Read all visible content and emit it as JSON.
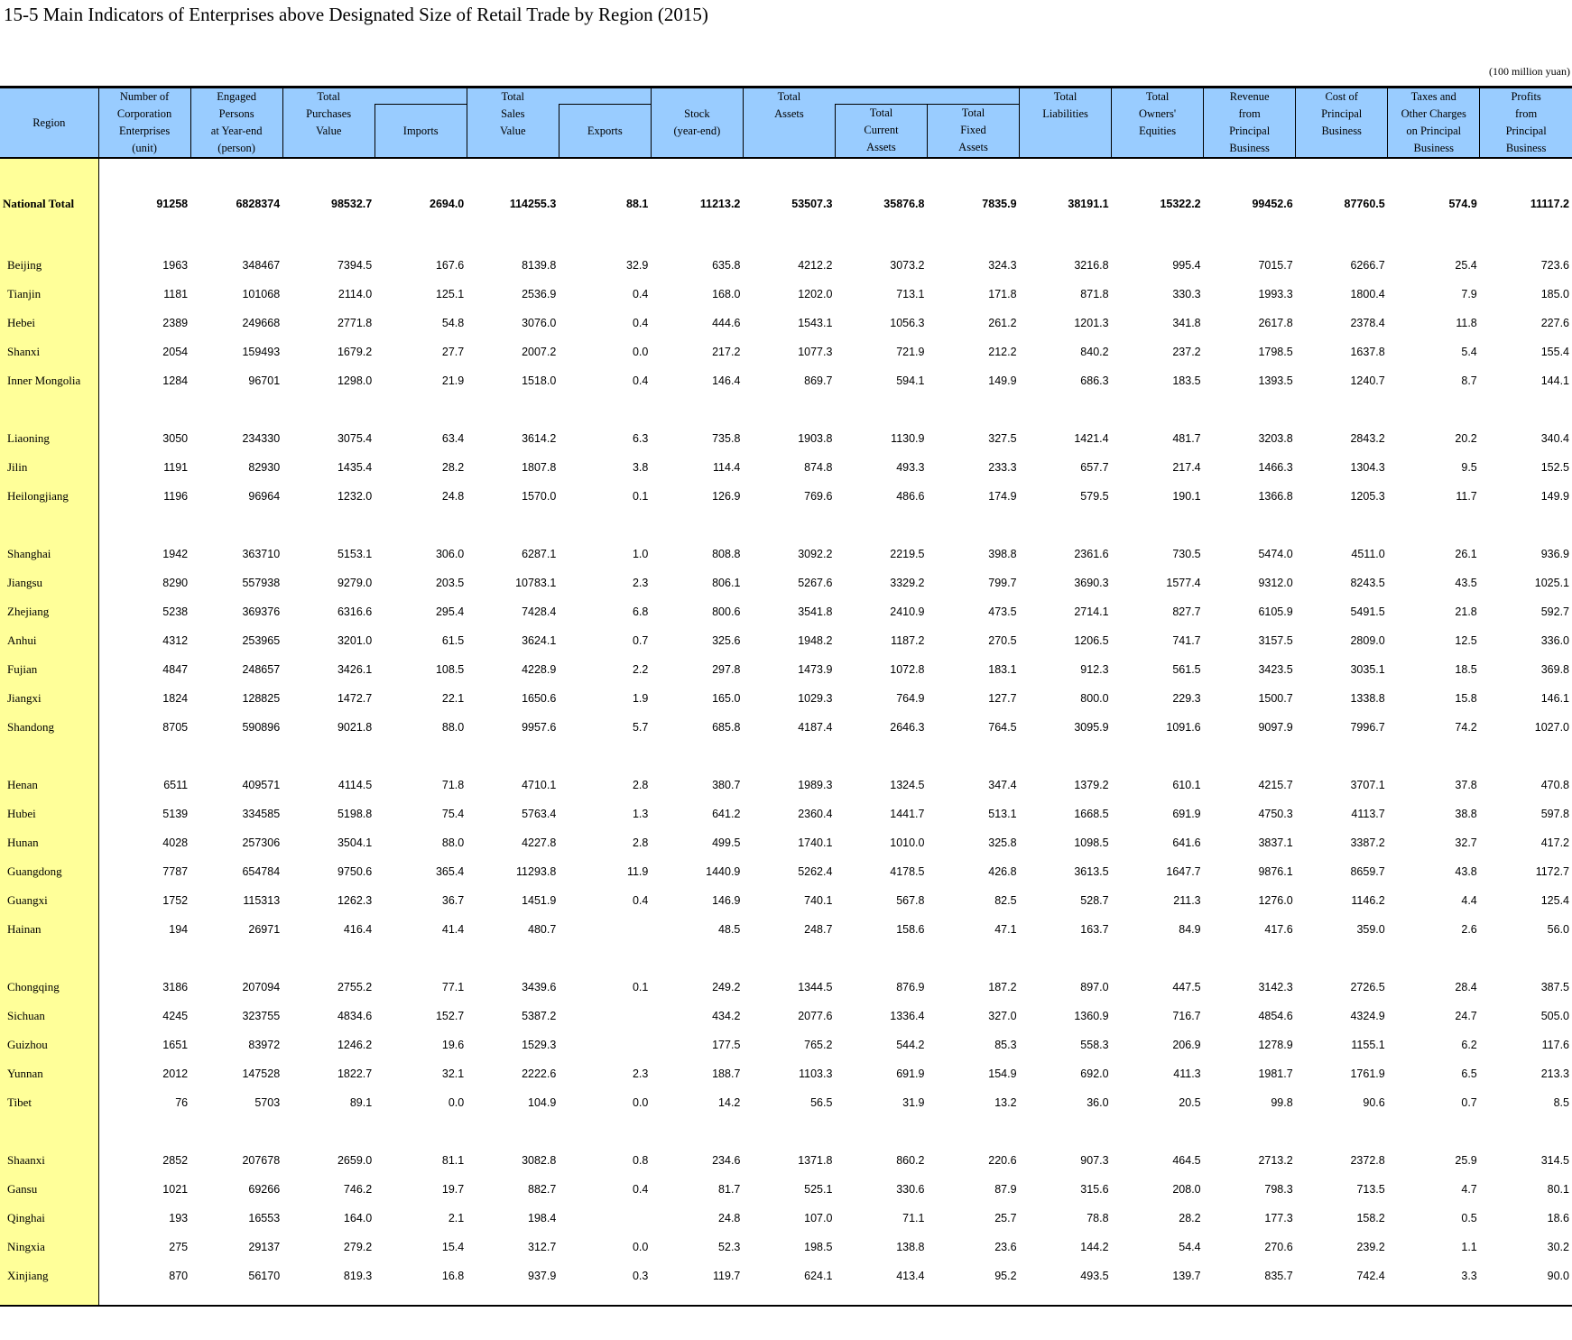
{
  "title": "15-5  Main Indicators of Enterprises above Designated Size of Retail Trade by Region (2015)",
  "unit": "(100 million yuan)",
  "headers": {
    "region": "Region",
    "enterprises": [
      "Number of",
      "Corporation",
      "Enterprises",
      "(unit)"
    ],
    "persons": [
      "Engaged",
      "Persons",
      "at Year-end",
      "(person)"
    ],
    "purchases": [
      "Total",
      "Purchases",
      "Value"
    ],
    "imports": "Imports",
    "sales": [
      "Total",
      "Sales",
      "Value"
    ],
    "exports": "Exports",
    "stock": [
      "Stock",
      "(year-end)"
    ],
    "assets": [
      "Total",
      "Assets"
    ],
    "current": [
      "Total",
      "Current",
      "Assets"
    ],
    "fixed": [
      "Total",
      "Fixed",
      "Assets"
    ],
    "liabilities": [
      "Total",
      "Liabilities"
    ],
    "equities": [
      "Total",
      "Owners'",
      "Equities"
    ],
    "revenue": [
      "Revenue",
      "from",
      "Principal",
      "Business"
    ],
    "cost": [
      "Cost of",
      "Principal",
      "Business"
    ],
    "taxes": [
      "Taxes and",
      "Other Charges",
      "on Principal",
      "Business"
    ],
    "profits": [
      "Profits",
      "from",
      "Principal",
      "Business"
    ]
  },
  "national": [
    "National Total",
    "91258",
    "6828374",
    "98532.7",
    "2694.0",
    "114255.3",
    "88.1",
    "11213.2",
    "53507.3",
    "35876.8",
    "7835.9",
    "38191.1",
    "15322.2",
    "99452.6",
    "87760.5",
    "574.9",
    "11117.2"
  ],
  "groups": [
    [
      [
        "Beijing",
        "1963",
        "348467",
        "7394.5",
        "167.6",
        "8139.8",
        "32.9",
        "635.8",
        "4212.2",
        "3073.2",
        "324.3",
        "3216.8",
        "995.4",
        "7015.7",
        "6266.7",
        "25.4",
        "723.6"
      ],
      [
        "Tianjin",
        "1181",
        "101068",
        "2114.0",
        "125.1",
        "2536.9",
        "0.4",
        "168.0",
        "1202.0",
        "713.1",
        "171.8",
        "871.8",
        "330.3",
        "1993.3",
        "1800.4",
        "7.9",
        "185.0"
      ],
      [
        "Hebei",
        "2389",
        "249668",
        "2771.8",
        "54.8",
        "3076.0",
        "0.4",
        "444.6",
        "1543.1",
        "1056.3",
        "261.2",
        "1201.3",
        "341.8",
        "2617.8",
        "2378.4",
        "11.8",
        "227.6"
      ],
      [
        "Shanxi",
        "2054",
        "159493",
        "1679.2",
        "27.7",
        "2007.2",
        "0.0",
        "217.2",
        "1077.3",
        "721.9",
        "212.2",
        "840.2",
        "237.2",
        "1798.5",
        "1637.8",
        "5.4",
        "155.4"
      ],
      [
        "Inner Mongolia",
        "1284",
        "96701",
        "1298.0",
        "21.9",
        "1518.0",
        "0.4",
        "146.4",
        "869.7",
        "594.1",
        "149.9",
        "686.3",
        "183.5",
        "1393.5",
        "1240.7",
        "8.7",
        "144.1"
      ]
    ],
    [
      [
        "Liaoning",
        "3050",
        "234330",
        "3075.4",
        "63.4",
        "3614.2",
        "6.3",
        "735.8",
        "1903.8",
        "1130.9",
        "327.5",
        "1421.4",
        "481.7",
        "3203.8",
        "2843.2",
        "20.2",
        "340.4"
      ],
      [
        "Jilin",
        "1191",
        "82930",
        "1435.4",
        "28.2",
        "1807.8",
        "3.8",
        "114.4",
        "874.8",
        "493.3",
        "233.3",
        "657.7",
        "217.4",
        "1466.3",
        "1304.3",
        "9.5",
        "152.5"
      ],
      [
        "Heilongjiang",
        "1196",
        "96964",
        "1232.0",
        "24.8",
        "1570.0",
        "0.1",
        "126.9",
        "769.6",
        "486.6",
        "174.9",
        "579.5",
        "190.1",
        "1366.8",
        "1205.3",
        "11.7",
        "149.9"
      ]
    ],
    [
      [
        "Shanghai",
        "1942",
        "363710",
        "5153.1",
        "306.0",
        "6287.1",
        "1.0",
        "808.8",
        "3092.2",
        "2219.5",
        "398.8",
        "2361.6",
        "730.5",
        "5474.0",
        "4511.0",
        "26.1",
        "936.9"
      ],
      [
        "Jiangsu",
        "8290",
        "557938",
        "9279.0",
        "203.5",
        "10783.1",
        "2.3",
        "806.1",
        "5267.6",
        "3329.2",
        "799.7",
        "3690.3",
        "1577.4",
        "9312.0",
        "8243.5",
        "43.5",
        "1025.1"
      ],
      [
        "Zhejiang",
        "5238",
        "369376",
        "6316.6",
        "295.4",
        "7428.4",
        "6.8",
        "800.6",
        "3541.8",
        "2410.9",
        "473.5",
        "2714.1",
        "827.7",
        "6105.9",
        "5491.5",
        "21.8",
        "592.7"
      ],
      [
        "Anhui",
        "4312",
        "253965",
        "3201.0",
        "61.5",
        "3624.1",
        "0.7",
        "325.6",
        "1948.2",
        "1187.2",
        "270.5",
        "1206.5",
        "741.7",
        "3157.5",
        "2809.0",
        "12.5",
        "336.0"
      ],
      [
        "Fujian",
        "4847",
        "248657",
        "3426.1",
        "108.5",
        "4228.9",
        "2.2",
        "297.8",
        "1473.9",
        "1072.8",
        "183.1",
        "912.3",
        "561.5",
        "3423.5",
        "3035.1",
        "18.5",
        "369.8"
      ],
      [
        "Jiangxi",
        "1824",
        "128825",
        "1472.7",
        "22.1",
        "1650.6",
        "1.9",
        "165.0",
        "1029.3",
        "764.9",
        "127.7",
        "800.0",
        "229.3",
        "1500.7",
        "1338.8",
        "15.8",
        "146.1"
      ],
      [
        "Shandong",
        "8705",
        "590896",
        "9021.8",
        "88.0",
        "9957.6",
        "5.7",
        "685.8",
        "4187.4",
        "2646.3",
        "764.5",
        "3095.9",
        "1091.6",
        "9097.9",
        "7996.7",
        "74.2",
        "1027.0"
      ]
    ],
    [
      [
        "Henan",
        "6511",
        "409571",
        "4114.5",
        "71.8",
        "4710.1",
        "2.8",
        "380.7",
        "1989.3",
        "1324.5",
        "347.4",
        "1379.2",
        "610.1",
        "4215.7",
        "3707.1",
        "37.8",
        "470.8"
      ],
      [
        "Hubei",
        "5139",
        "334585",
        "5198.8",
        "75.4",
        "5763.4",
        "1.3",
        "641.2",
        "2360.4",
        "1441.7",
        "513.1",
        "1668.5",
        "691.9",
        "4750.3",
        "4113.7",
        "38.8",
        "597.8"
      ],
      [
        "Hunan",
        "4028",
        "257306",
        "3504.1",
        "88.0",
        "4227.8",
        "2.8",
        "499.5",
        "1740.1",
        "1010.0",
        "325.8",
        "1098.5",
        "641.6",
        "3837.1",
        "3387.2",
        "32.7",
        "417.2"
      ],
      [
        "Guangdong",
        "7787",
        "654784",
        "9750.6",
        "365.4",
        "11293.8",
        "11.9",
        "1440.9",
        "5262.4",
        "4178.5",
        "426.8",
        "3613.5",
        "1647.7",
        "9876.1",
        "8659.7",
        "43.8",
        "1172.7"
      ],
      [
        "Guangxi",
        "1752",
        "115313",
        "1262.3",
        "36.7",
        "1451.9",
        "0.4",
        "146.9",
        "740.1",
        "567.8",
        "82.5",
        "528.7",
        "211.3",
        "1276.0",
        "1146.2",
        "4.4",
        "125.4"
      ],
      [
        "Hainan",
        "194",
        "26971",
        "416.4",
        "41.4",
        "480.7",
        "",
        "48.5",
        "248.7",
        "158.6",
        "47.1",
        "163.7",
        "84.9",
        "417.6",
        "359.0",
        "2.6",
        "56.0"
      ]
    ],
    [
      [
        "Chongqing",
        "3186",
        "207094",
        "2755.2",
        "77.1",
        "3439.6",
        "0.1",
        "249.2",
        "1344.5",
        "876.9",
        "187.2",
        "897.0",
        "447.5",
        "3142.3",
        "2726.5",
        "28.4",
        "387.5"
      ],
      [
        "Sichuan",
        "4245",
        "323755",
        "4834.6",
        "152.7",
        "5387.2",
        "",
        "434.2",
        "2077.6",
        "1336.4",
        "327.0",
        "1360.9",
        "716.7",
        "4854.6",
        "4324.9",
        "24.7",
        "505.0"
      ],
      [
        "Guizhou",
        "1651",
        "83972",
        "1246.2",
        "19.6",
        "1529.3",
        "",
        "177.5",
        "765.2",
        "544.2",
        "85.3",
        "558.3",
        "206.9",
        "1278.9",
        "1155.1",
        "6.2",
        "117.6"
      ],
      [
        "Yunnan",
        "2012",
        "147528",
        "1822.7",
        "32.1",
        "2222.6",
        "2.3",
        "188.7",
        "1103.3",
        "691.9",
        "154.9",
        "692.0",
        "411.3",
        "1981.7",
        "1761.9",
        "6.5",
        "213.3"
      ],
      [
        "Tibet",
        "76",
        "5703",
        "89.1",
        "0.0",
        "104.9",
        "0.0",
        "14.2",
        "56.5",
        "31.9",
        "13.2",
        "36.0",
        "20.5",
        "99.8",
        "90.6",
        "0.7",
        "8.5"
      ]
    ],
    [
      [
        "Shaanxi",
        "2852",
        "207678",
        "2659.0",
        "81.1",
        "3082.8",
        "0.8",
        "234.6",
        "1371.8",
        "860.2",
        "220.6",
        "907.3",
        "464.5",
        "2713.2",
        "2372.8",
        "25.9",
        "314.5"
      ],
      [
        "Gansu",
        "1021",
        "69266",
        "746.2",
        "19.7",
        "882.7",
        "0.4",
        "81.7",
        "525.1",
        "330.6",
        "87.9",
        "315.6",
        "208.0",
        "798.3",
        "713.5",
        "4.7",
        "80.1"
      ],
      [
        "Qinghai",
        "193",
        "16553",
        "164.0",
        "2.1",
        "198.4",
        "",
        "24.8",
        "107.0",
        "71.1",
        "25.7",
        "78.8",
        "28.2",
        "177.3",
        "158.2",
        "0.5",
        "18.6"
      ],
      [
        "Ningxia",
        "275",
        "29137",
        "279.2",
        "15.4",
        "312.7",
        "0.0",
        "52.3",
        "198.5",
        "138.8",
        "23.6",
        "144.2",
        "54.4",
        "270.6",
        "239.2",
        "1.1",
        "30.2"
      ],
      [
        "Xinjiang",
        "870",
        "56170",
        "819.3",
        "16.8",
        "937.9",
        "0.3",
        "119.7",
        "624.1",
        "413.4",
        "95.2",
        "493.5",
        "139.7",
        "835.7",
        "742.4",
        "3.3",
        "90.0"
      ]
    ]
  ]
}
